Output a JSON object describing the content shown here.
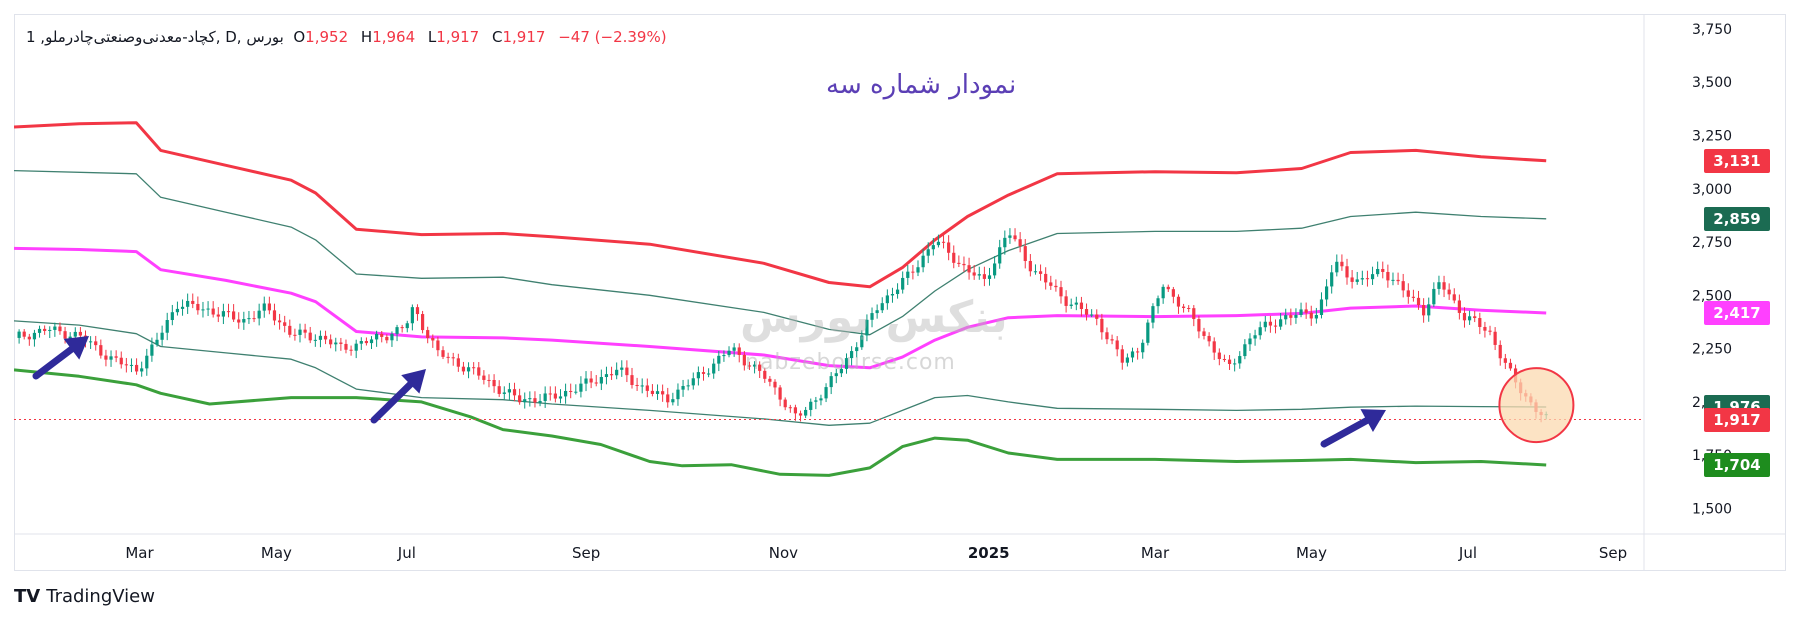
{
  "legend": {
    "symbol": "1 ,کچاد-معدنی‌وصنعتی‌چادرملو, D, بورس",
    "open_label": "O",
    "open": "1,952",
    "high_label": "H",
    "high": "1,964",
    "low_label": "L",
    "low": "1,917",
    "close_label": "C",
    "close": "1,917",
    "change": "−47 (−2.39%)"
  },
  "annotation_title": "نمودار شماره سه",
  "watermark": {
    "logo": "بنکس بورس",
    "url": "nabzebourse.com"
  },
  "brand": {
    "logo_mark": "TV",
    "name": "TradingView"
  },
  "colors": {
    "upper_outer": "#f23645",
    "upper_inner": "#3f8070",
    "middle": "#ff40ff",
    "lower_inner": "#3f8070",
    "lower_outer": "#3ba03b",
    "candle_up": "#089981",
    "candle_down": "#f23645",
    "arrow": "#2f2a9a",
    "circle_fill": "#fbd9b0",
    "circle_stroke": "#f23645"
  },
  "price_tags": [
    {
      "label": "3,131",
      "value": 3131,
      "color": "#f23645"
    },
    {
      "label": "2,859",
      "value": 2859,
      "color": "#1b6b52"
    },
    {
      "label": "2,417",
      "value": 2417,
      "color": "#ff40ff"
    },
    {
      "label": "1,976",
      "value": 1976,
      "color": "#1b6b52"
    },
    {
      "label": "1,917",
      "value": 1917,
      "color": "#f23645"
    },
    {
      "label": "1,704",
      "value": 1704,
      "color": "#1e8c1e"
    }
  ],
  "chart_data": {
    "type": "line",
    "title": "",
    "xlabel": "",
    "ylabel": "",
    "ylim": [
      1380,
      3820
    ],
    "y_ticks": [
      1500,
      1750,
      2000,
      2250,
      2500,
      2750,
      3000,
      3250,
      3500,
      3750
    ],
    "y_tick_labels": [
      "1,500",
      "1,750",
      "2,000",
      "2,250",
      "2,500",
      "2,750",
      "3,000",
      "3,250",
      "3,500",
      "3,750"
    ],
    "x_ticks": [
      {
        "label": "Mar",
        "pos": 0.077,
        "bold": false
      },
      {
        "label": "May",
        "pos": 0.161,
        "bold": false
      },
      {
        "label": "Jul",
        "pos": 0.241,
        "bold": false
      },
      {
        "label": "Sep",
        "pos": 0.351,
        "bold": false
      },
      {
        "label": "Nov",
        "pos": 0.472,
        "bold": false
      },
      {
        "label": "2025",
        "pos": 0.598,
        "bold": true
      },
      {
        "label": "Mar",
        "pos": 0.7,
        "bold": false
      },
      {
        "label": "May",
        "pos": 0.796,
        "bold": false
      },
      {
        "label": "Jul",
        "pos": 0.892,
        "bold": false
      },
      {
        "label": "Sep",
        "pos": 0.981,
        "bold": false
      }
    ],
    "x_end": 0.94,
    "last_close": 1917,
    "series": [
      {
        "name": "",
        "role": "upper_outer",
        "points": [
          [
            0,
            3290
          ],
          [
            0.04,
            3305
          ],
          [
            0.075,
            3310
          ],
          [
            0.09,
            3180
          ],
          [
            0.13,
            3110
          ],
          [
            0.17,
            3040
          ],
          [
            0.185,
            2980
          ],
          [
            0.21,
            2810
          ],
          [
            0.25,
            2785
          ],
          [
            0.3,
            2790
          ],
          [
            0.33,
            2775
          ],
          [
            0.39,
            2740
          ],
          [
            0.46,
            2650
          ],
          [
            0.5,
            2560
          ],
          [
            0.525,
            2540
          ],
          [
            0.545,
            2630
          ],
          [
            0.565,
            2760
          ],
          [
            0.585,
            2870
          ],
          [
            0.61,
            2970
          ],
          [
            0.64,
            3070
          ],
          [
            0.7,
            3080
          ],
          [
            0.75,
            3075
          ],
          [
            0.79,
            3095
          ],
          [
            0.82,
            3170
          ],
          [
            0.86,
            3180
          ],
          [
            0.9,
            3150
          ],
          [
            0.94,
            3131
          ]
        ]
      },
      {
        "name": "",
        "role": "upper_inner",
        "points": [
          [
            0,
            3085
          ],
          [
            0.075,
            3070
          ],
          [
            0.09,
            2960
          ],
          [
            0.13,
            2890
          ],
          [
            0.17,
            2820
          ],
          [
            0.185,
            2760
          ],
          [
            0.21,
            2600
          ],
          [
            0.25,
            2580
          ],
          [
            0.3,
            2585
          ],
          [
            0.33,
            2550
          ],
          [
            0.39,
            2500
          ],
          [
            0.46,
            2420
          ],
          [
            0.5,
            2340
          ],
          [
            0.525,
            2315
          ],
          [
            0.545,
            2400
          ],
          [
            0.565,
            2520
          ],
          [
            0.585,
            2620
          ],
          [
            0.61,
            2710
          ],
          [
            0.64,
            2790
          ],
          [
            0.7,
            2800
          ],
          [
            0.75,
            2800
          ],
          [
            0.79,
            2815
          ],
          [
            0.82,
            2870
          ],
          [
            0.86,
            2890
          ],
          [
            0.9,
            2870
          ],
          [
            0.94,
            2859
          ]
        ]
      },
      {
        "name": "",
        "role": "middle",
        "points": [
          [
            0,
            2720
          ],
          [
            0.04,
            2715
          ],
          [
            0.075,
            2705
          ],
          [
            0.09,
            2620
          ],
          [
            0.13,
            2570
          ],
          [
            0.17,
            2510
          ],
          [
            0.185,
            2470
          ],
          [
            0.21,
            2330
          ],
          [
            0.25,
            2305
          ],
          [
            0.3,
            2300
          ],
          [
            0.33,
            2290
          ],
          [
            0.39,
            2260
          ],
          [
            0.46,
            2220
          ],
          [
            0.5,
            2170
          ],
          [
            0.525,
            2160
          ],
          [
            0.545,
            2210
          ],
          [
            0.565,
            2290
          ],
          [
            0.585,
            2350
          ],
          [
            0.61,
            2395
          ],
          [
            0.64,
            2405
          ],
          [
            0.7,
            2400
          ],
          [
            0.75,
            2405
          ],
          [
            0.79,
            2415
          ],
          [
            0.82,
            2440
          ],
          [
            0.86,
            2450
          ],
          [
            0.9,
            2430
          ],
          [
            0.94,
            2417
          ]
        ]
      },
      {
        "name": "",
        "role": "lower_inner",
        "points": [
          [
            0,
            2380
          ],
          [
            0.04,
            2360
          ],
          [
            0.075,
            2320
          ],
          [
            0.09,
            2260
          ],
          [
            0.13,
            2230
          ],
          [
            0.17,
            2200
          ],
          [
            0.185,
            2160
          ],
          [
            0.21,
            2060
          ],
          [
            0.25,
            2020
          ],
          [
            0.3,
            2010
          ],
          [
            0.33,
            1990
          ],
          [
            0.39,
            1960
          ],
          [
            0.46,
            1920
          ],
          [
            0.5,
            1890
          ],
          [
            0.525,
            1900
          ],
          [
            0.545,
            1960
          ],
          [
            0.565,
            2020
          ],
          [
            0.585,
            2030
          ],
          [
            0.61,
            2000
          ],
          [
            0.64,
            1970
          ],
          [
            0.7,
            1965
          ],
          [
            0.75,
            1960
          ],
          [
            0.79,
            1965
          ],
          [
            0.82,
            1975
          ],
          [
            0.86,
            1980
          ],
          [
            0.9,
            1978
          ],
          [
            0.94,
            1976
          ]
        ]
      },
      {
        "name": "",
        "role": "lower_outer",
        "points": [
          [
            0,
            2150
          ],
          [
            0.04,
            2120
          ],
          [
            0.075,
            2080
          ],
          [
            0.09,
            2040
          ],
          [
            0.12,
            1990
          ],
          [
            0.17,
            2020
          ],
          [
            0.21,
            2020
          ],
          [
            0.25,
            2000
          ],
          [
            0.28,
            1930
          ],
          [
            0.3,
            1870
          ],
          [
            0.33,
            1840
          ],
          [
            0.36,
            1800
          ],
          [
            0.39,
            1720
          ],
          [
            0.41,
            1700
          ],
          [
            0.44,
            1705
          ],
          [
            0.47,
            1660
          ],
          [
            0.5,
            1655
          ],
          [
            0.525,
            1690
          ],
          [
            0.545,
            1790
          ],
          [
            0.565,
            1830
          ],
          [
            0.585,
            1820
          ],
          [
            0.61,
            1760
          ],
          [
            0.64,
            1730
          ],
          [
            0.7,
            1730
          ],
          [
            0.75,
            1720
          ],
          [
            0.79,
            1725
          ],
          [
            0.82,
            1730
          ],
          [
            0.86,
            1715
          ],
          [
            0.9,
            1720
          ],
          [
            0.94,
            1704
          ]
        ]
      },
      {
        "name": "",
        "role": "close",
        "points": [
          [
            0,
            2300
          ],
          [
            0.02,
            2340
          ],
          [
            0.04,
            2310
          ],
          [
            0.06,
            2200
          ],
          [
            0.075,
            2150
          ],
          [
            0.085,
            2250
          ],
          [
            0.1,
            2460
          ],
          [
            0.12,
            2430
          ],
          [
            0.14,
            2380
          ],
          [
            0.155,
            2440
          ],
          [
            0.17,
            2320
          ],
          [
            0.19,
            2300
          ],
          [
            0.2,
            2250
          ],
          [
            0.22,
            2290
          ],
          [
            0.24,
            2350
          ],
          [
            0.245,
            2440
          ],
          [
            0.26,
            2230
          ],
          [
            0.28,
            2150
          ],
          [
            0.3,
            2050
          ],
          [
            0.31,
            2010
          ],
          [
            0.33,
            2020
          ],
          [
            0.35,
            2080
          ],
          [
            0.37,
            2150
          ],
          [
            0.385,
            2070
          ],
          [
            0.4,
            2010
          ],
          [
            0.42,
            2120
          ],
          [
            0.44,
            2250
          ],
          [
            0.46,
            2120
          ],
          [
            0.47,
            2030
          ],
          [
            0.48,
            1920
          ],
          [
            0.49,
            2000
          ],
          [
            0.5,
            2080
          ],
          [
            0.515,
            2250
          ],
          [
            0.53,
            2450
          ],
          [
            0.55,
            2600
          ],
          [
            0.565,
            2760
          ],
          [
            0.58,
            2650
          ],
          [
            0.595,
            2560
          ],
          [
            0.61,
            2800
          ],
          [
            0.625,
            2620
          ],
          [
            0.645,
            2480
          ],
          [
            0.665,
            2380
          ],
          [
            0.68,
            2190
          ],
          [
            0.69,
            2250
          ],
          [
            0.705,
            2550
          ],
          [
            0.72,
            2420
          ],
          [
            0.735,
            2260
          ],
          [
            0.745,
            2150
          ],
          [
            0.76,
            2320
          ],
          [
            0.78,
            2400
          ],
          [
            0.8,
            2420
          ],
          [
            0.81,
            2650
          ],
          [
            0.825,
            2560
          ],
          [
            0.84,
            2620
          ],
          [
            0.855,
            2500
          ],
          [
            0.865,
            2430
          ],
          [
            0.875,
            2560
          ],
          [
            0.89,
            2400
          ],
          [
            0.905,
            2330
          ],
          [
            0.92,
            2100
          ],
          [
            0.93,
            2000
          ],
          [
            0.94,
            1917
          ]
        ]
      }
    ]
  }
}
